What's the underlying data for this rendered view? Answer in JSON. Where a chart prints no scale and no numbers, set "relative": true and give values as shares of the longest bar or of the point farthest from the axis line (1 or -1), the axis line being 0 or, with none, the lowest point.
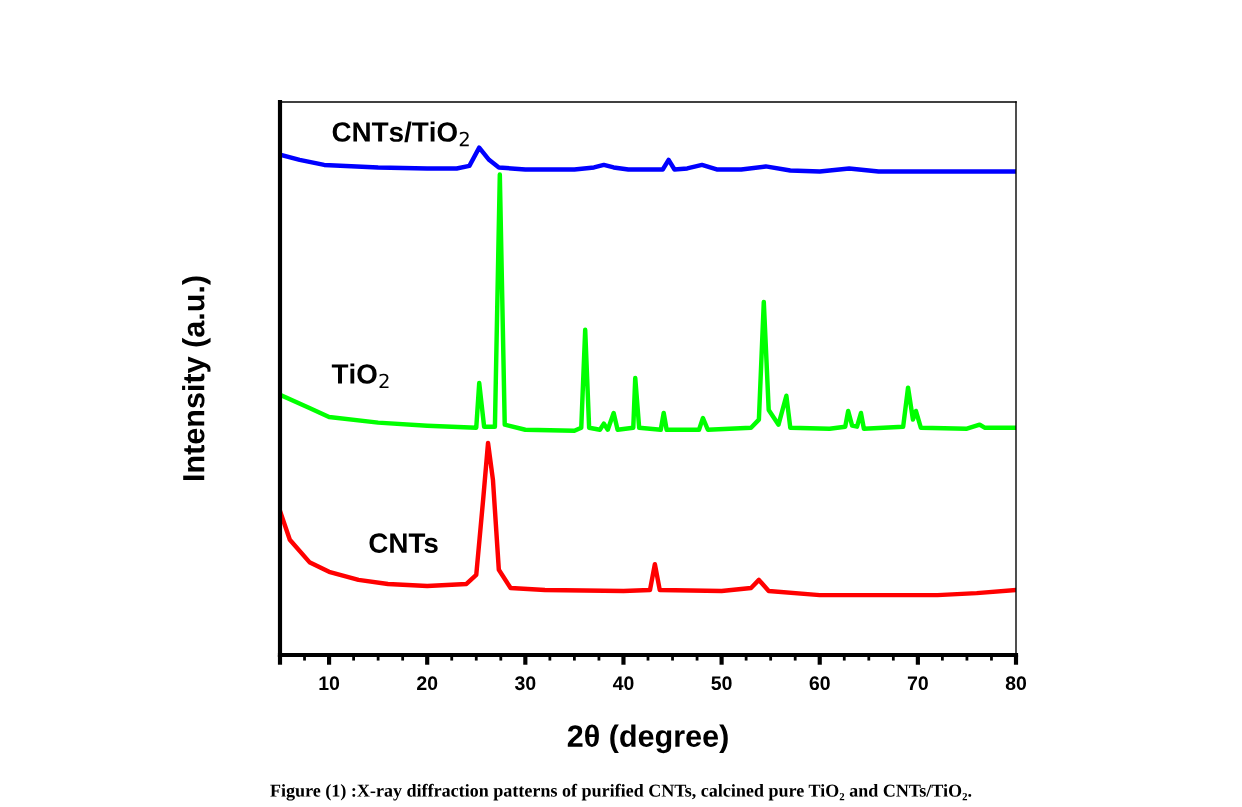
{
  "chart_data": {
    "type": "line",
    "relative": true,
    "xlabel": "2θ (degree)",
    "ylabel": "Intensity (a.u.)",
    "xlim": [
      5,
      80
    ],
    "xticks": [
      {
        "value": 5,
        "label": null
      },
      10,
      20,
      30,
      40,
      50,
      60,
      70,
      80
    ],
    "grid": false,
    "legend": false,
    "marker": "none",
    "line_style": "solid",
    "annotations": [
      "Figure (1) :X-ray diffraction patterns of purified CNTs, calcined pure TiO₂ and CNTs/TiO₂."
    ],
    "series": [
      {
        "name": "CNTs/TiO$_{2}$",
        "color": "#0000ff",
        "x": [
          5,
          7,
          9.5,
          15,
          20,
          23,
          24.3,
          25.3,
          26.3,
          27.3,
          30,
          35,
          37,
          38,
          39,
          40.5,
          44,
          44.6,
          45.2,
          46.5,
          48,
          49.5,
          52,
          54.5,
          57,
          60,
          63,
          66,
          80
        ],
        "values": [
          0.986,
          0.976,
          0.966,
          0.961,
          0.959,
          0.959,
          0.964,
          1.0,
          0.976,
          0.961,
          0.957,
          0.957,
          0.961,
          0.966,
          0.961,
          0.957,
          0.957,
          0.976,
          0.957,
          0.959,
          0.966,
          0.957,
          0.957,
          0.963,
          0.955,
          0.953,
          0.959,
          0.953,
          0.953
        ]
      },
      {
        "name": "TiO$_{2}$",
        "color": "#00ff00",
        "x": [
          5,
          8,
          10,
          15,
          20,
          25,
          25.3,
          25.8,
          26.9,
          27.4,
          27.9,
          30,
          35,
          35.7,
          36.1,
          36.5,
          37.6,
          38,
          38.4,
          39,
          39.4,
          41,
          41.2,
          41.6,
          43.8,
          44.1,
          44.4,
          47.7,
          48.1,
          48.6,
          53,
          53.8,
          54.3,
          54.8,
          55.8,
          56.6,
          57,
          61,
          62.6,
          62.9,
          63.3,
          63.8,
          64.2,
          64.5,
          68.5,
          69.0,
          69.5,
          69.8,
          70.3,
          75,
          76.3,
          76.8,
          80
        ],
        "values": [
          0.513,
          0.487,
          0.469,
          0.458,
          0.452,
          0.448,
          0.536,
          0.45,
          0.45,
          0.947,
          0.454,
          0.444,
          0.442,
          0.448,
          0.641,
          0.448,
          0.444,
          0.456,
          0.444,
          0.477,
          0.444,
          0.448,
          0.546,
          0.448,
          0.444,
          0.477,
          0.444,
          0.444,
          0.467,
          0.444,
          0.448,
          0.464,
          0.696,
          0.483,
          0.454,
          0.511,
          0.448,
          0.446,
          0.45,
          0.481,
          0.452,
          0.45,
          0.477,
          0.446,
          0.45,
          0.527,
          0.464,
          0.481,
          0.448,
          0.446,
          0.454,
          0.448,
          0.448
        ]
      },
      {
        "name": "CNTs",
        "color": "#ff0000",
        "x": [
          5,
          6,
          8,
          10,
          13,
          16,
          20,
          24,
          25,
          25.7,
          26.2,
          26.7,
          27.3,
          28.5,
          32,
          40,
          42.7,
          43.2,
          43.7,
          50,
          53,
          53.8,
          54.8,
          60,
          72,
          76,
          80
        ],
        "values": [
          0.284,
          0.227,
          0.183,
          0.164,
          0.148,
          0.14,
          0.136,
          0.14,
          0.158,
          0.306,
          0.418,
          0.345,
          0.168,
          0.132,
          0.128,
          0.126,
          0.128,
          0.179,
          0.128,
          0.126,
          0.132,
          0.148,
          0.126,
          0.118,
          0.118,
          0.122,
          0.128
        ]
      }
    ]
  }
}
